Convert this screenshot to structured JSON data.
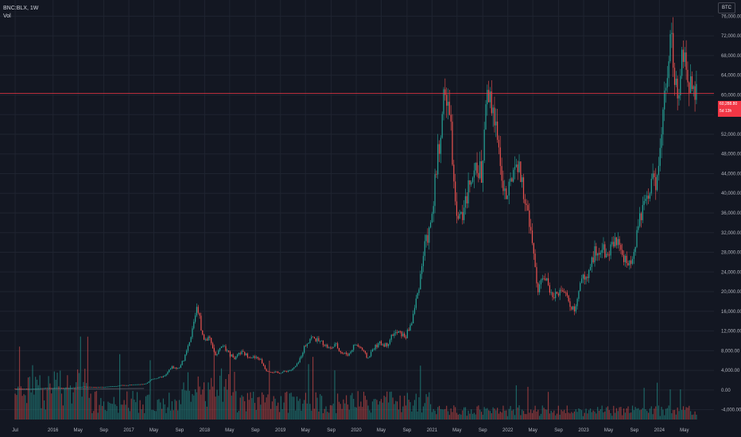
{
  "header": {
    "symbol": "BNC:BLX, 1W",
    "volume_label": "Vol"
  },
  "currency_button": "BTC",
  "last_price": {
    "value": "60,288.80",
    "countdown": "5d 13h"
  },
  "colors": {
    "up": "#26a69a",
    "down": "#ef5350",
    "background": "#131722",
    "grid": "#1f2430",
    "price_line": "#f23645",
    "text": "#b2b5be"
  },
  "chart_data": {
    "type": "candlestick",
    "title": "BNC:BLX, 1W",
    "ylim": [
      -6000,
      78000
    ],
    "y_ticks": [
      "76,000.00",
      "72,000.00",
      "68,000.00",
      "64,000.00",
      "60,000.00",
      "56,000.00",
      "52,000.00",
      "48,000.00",
      "44,000.00",
      "40,000.00",
      "36,000.00",
      "32,000.00",
      "28,000.00",
      "24,000.00",
      "20,000.00",
      "16,000.00",
      "12,000.00",
      "8,000.00",
      "4,000.00",
      "0.00",
      "-4,000.00"
    ],
    "x_ticks": [
      "Jul",
      "2016",
      "May",
      "Sep",
      "2017",
      "May",
      "Sep",
      "2018",
      "May",
      "Sep",
      "2019",
      "May",
      "Sep",
      "2020",
      "May",
      "Sep",
      "2021",
      "May",
      "Sep",
      "2022",
      "May",
      "Sep",
      "2023",
      "May",
      "Sep",
      "2024",
      "May"
    ],
    "price_path_monthly": [
      [
        2015.5,
        280
      ],
      [
        2015.58,
        265
      ],
      [
        2015.67,
        235
      ],
      [
        2015.75,
        240
      ],
      [
        2015.83,
        315
      ],
      [
        2015.92,
        430
      ],
      [
        2016.0,
        375
      ],
      [
        2016.08,
        435
      ],
      [
        2016.17,
        415
      ],
      [
        2016.25,
        450
      ],
      [
        2016.33,
        530
      ],
      [
        2016.42,
        670
      ],
      [
        2016.5,
        625
      ],
      [
        2016.58,
        575
      ],
      [
        2016.67,
        610
      ],
      [
        2016.75,
        700
      ],
      [
        2016.83,
        745
      ],
      [
        2016.92,
        960
      ],
      [
        2017.0,
        970
      ],
      [
        2017.08,
        1190
      ],
      [
        2017.17,
        1080
      ],
      [
        2017.25,
        1350
      ],
      [
        2017.33,
        2300
      ],
      [
        2017.42,
        2500
      ],
      [
        2017.5,
        2880
      ],
      [
        2017.58,
        4700
      ],
      [
        2017.67,
        4300
      ],
      [
        2017.75,
        6400
      ],
      [
        2017.83,
        10000
      ],
      [
        2017.92,
        17500
      ],
      [
        2018.0,
        10200
      ],
      [
        2018.08,
        10400
      ],
      [
        2018.17,
        6900
      ],
      [
        2018.25,
        9200
      ],
      [
        2018.33,
        7500
      ],
      [
        2018.42,
        6400
      ],
      [
        2018.5,
        7700
      ],
      [
        2018.58,
        7000
      ],
      [
        2018.67,
        6600
      ],
      [
        2018.75,
        6300
      ],
      [
        2018.83,
        4000
      ],
      [
        2018.92,
        3700
      ],
      [
        2019.0,
        3450
      ],
      [
        2019.08,
        3800
      ],
      [
        2019.17,
        4100
      ],
      [
        2019.25,
        5300
      ],
      [
        2019.33,
        8600
      ],
      [
        2019.42,
        10800
      ],
      [
        2019.5,
        10100
      ],
      [
        2019.58,
        9600
      ],
      [
        2019.67,
        8300
      ],
      [
        2019.75,
        9200
      ],
      [
        2019.83,
        7500
      ],
      [
        2019.92,
        7200
      ],
      [
        2020.0,
        9350
      ],
      [
        2020.08,
        8600
      ],
      [
        2020.17,
        6400
      ],
      [
        2020.25,
        8600
      ],
      [
        2020.33,
        9450
      ],
      [
        2020.42,
        9140
      ],
      [
        2020.5,
        11350
      ],
      [
        2020.58,
        11650
      ],
      [
        2020.67,
        10780
      ],
      [
        2020.75,
        13800
      ],
      [
        2020.83,
        19700
      ],
      [
        2020.92,
        29000
      ],
      [
        2021.0,
        33100
      ],
      [
        2021.08,
        45200
      ],
      [
        2021.17,
        58800
      ],
      [
        2021.25,
        57700
      ],
      [
        2021.33,
        37300
      ],
      [
        2021.42,
        35000
      ],
      [
        2021.5,
        41500
      ],
      [
        2021.58,
        47100
      ],
      [
        2021.67,
        43800
      ],
      [
        2021.75,
        61300
      ],
      [
        2021.83,
        57000
      ],
      [
        2021.92,
        46200
      ],
      [
        2022.0,
        38500
      ],
      [
        2022.08,
        43200
      ],
      [
        2022.17,
        45500
      ],
      [
        2022.25,
        37700
      ],
      [
        2022.33,
        31800
      ],
      [
        2022.42,
        19900
      ],
      [
        2022.5,
        23300
      ],
      [
        2022.58,
        20000
      ],
      [
        2022.67,
        19400
      ],
      [
        2022.75,
        20500
      ],
      [
        2022.83,
        17200
      ],
      [
        2022.92,
        16500
      ],
      [
        2023.0,
        23100
      ],
      [
        2023.08,
        23100
      ],
      [
        2023.17,
        28500
      ],
      [
        2023.25,
        29200
      ],
      [
        2023.33,
        27200
      ],
      [
        2023.42,
        30500
      ],
      [
        2023.5,
        29200
      ],
      [
        2023.58,
        26000
      ],
      [
        2023.67,
        26900
      ],
      [
        2023.75,
        34500
      ],
      [
        2023.83,
        37700
      ],
      [
        2023.92,
        42300
      ],
      [
        2024.0,
        42600
      ],
      [
        2024.08,
        61200
      ],
      [
        2024.17,
        71300
      ],
      [
        2024.25,
        60600
      ],
      [
        2024.33,
        67500
      ],
      [
        2024.42,
        62700
      ],
      [
        2024.5,
        60288
      ]
    ]
  }
}
